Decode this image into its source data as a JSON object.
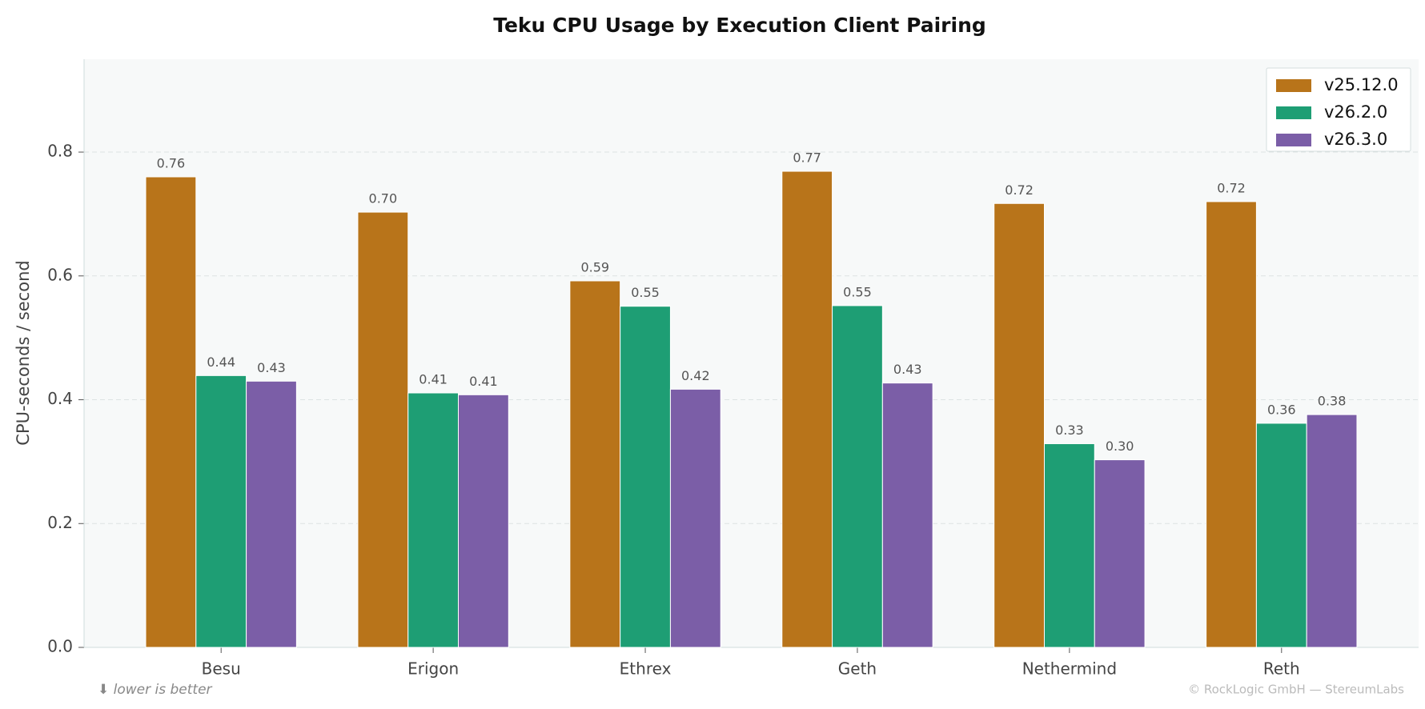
{
  "chart_data": {
    "type": "bar",
    "title": "Teku CPU Usage by Execution Client Pairing",
    "y_label": "CPU-seconds / second",
    "categories": [
      "Besu",
      "Erigon",
      "Ethrex",
      "Geth",
      "Nethermind",
      "Reth"
    ],
    "series": [
      {
        "name": "v25.12.0",
        "color": "#b8741a",
        "values": [
          0.76,
          0.703,
          0.592,
          0.769,
          0.717,
          0.72
        ],
        "value_labels": [
          "0.76",
          "0.70",
          "0.59",
          "0.77",
          "0.72",
          "0.72"
        ]
      },
      {
        "name": "v26.2.0",
        "color": "#1e9e74",
        "values": [
          0.439,
          0.411,
          0.551,
          0.552,
          0.329,
          0.362
        ],
        "value_labels": [
          "0.44",
          "0.41",
          "0.55",
          "0.55",
          "0.33",
          "0.36"
        ]
      },
      {
        "name": "v26.3.0",
        "color": "#7b5ea7",
        "values": [
          0.43,
          0.408,
          0.417,
          0.427,
          0.303,
          0.376
        ],
        "value_labels": [
          "0.43",
          "0.41",
          "0.42",
          "0.43",
          "0.30",
          "0.38"
        ]
      }
    ],
    "ylim": [
      0,
      0.95
    ],
    "yticks": [
      {
        "value": 0,
        "label": "0.0"
      },
      0.2,
      0.4,
      0.6,
      0.8
    ],
    "grid": true,
    "legend": "upper right",
    "annotations": [
      "⬇ lower is better",
      "© RockLogic GmbH — StereumLabs"
    ]
  }
}
